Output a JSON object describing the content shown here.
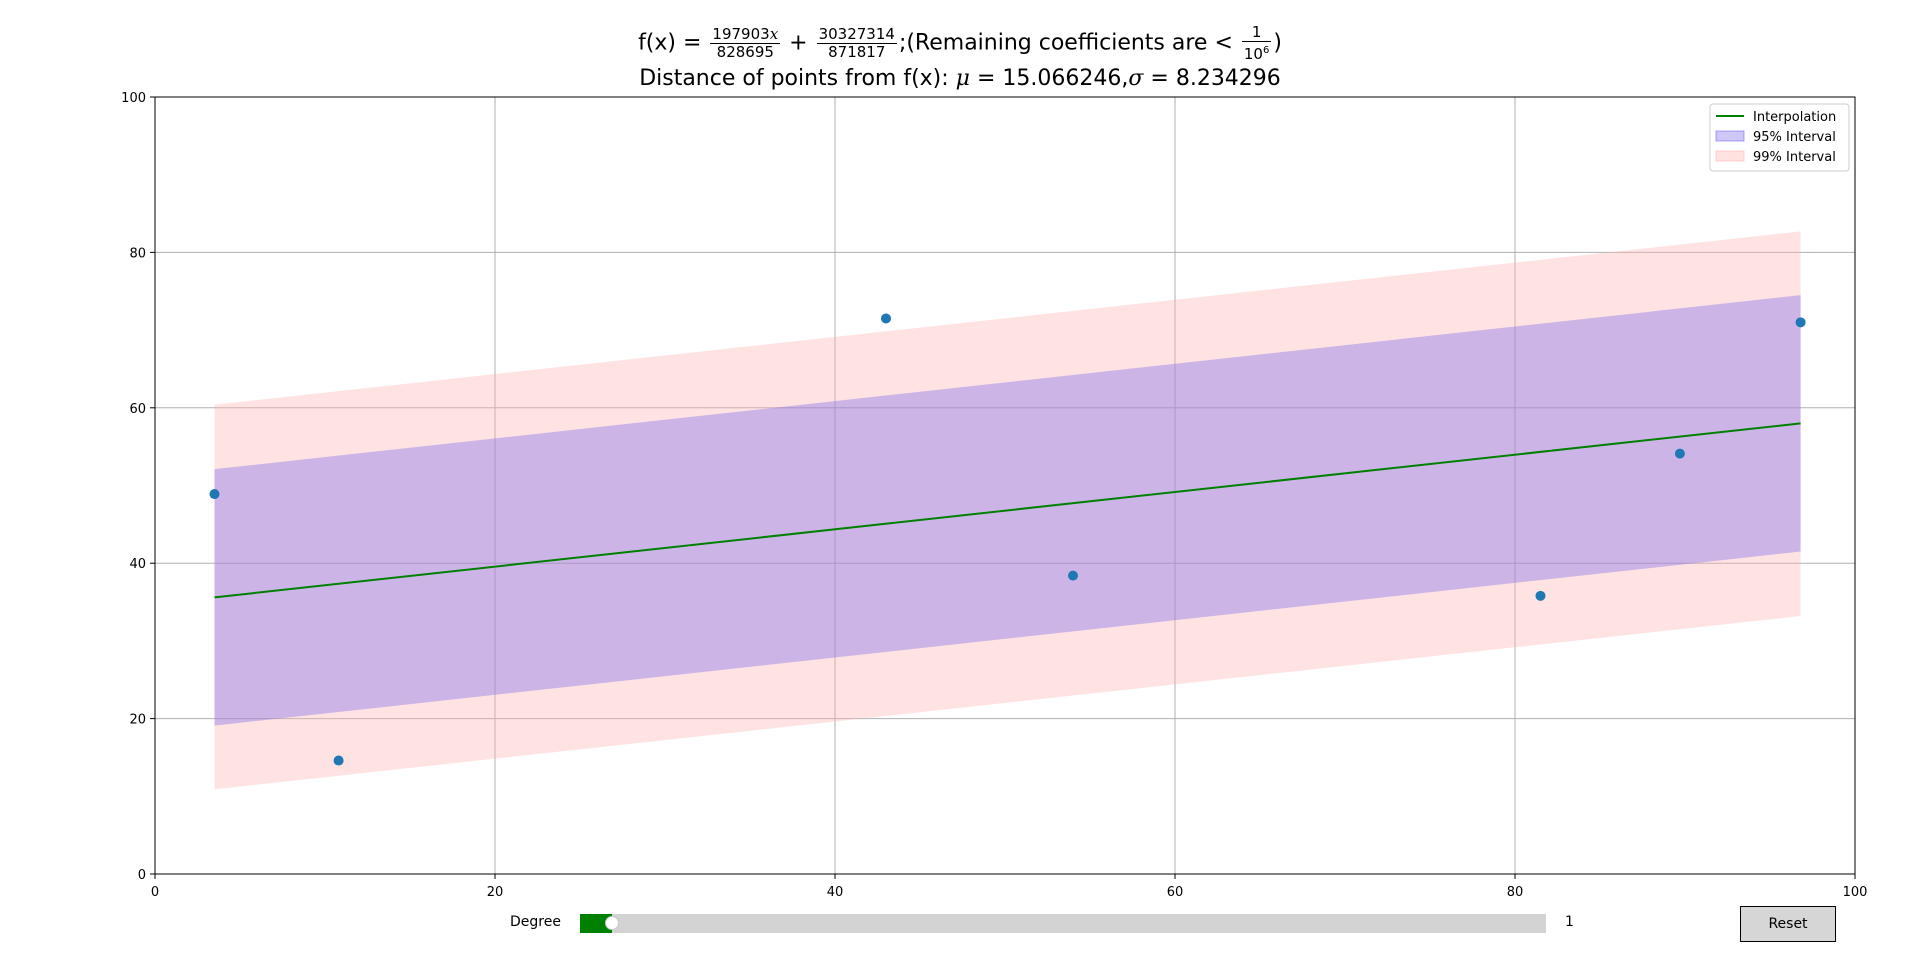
{
  "title": {
    "line1_prefix": "f(x) = ",
    "frac1_num": "197903",
    "frac1_var": "x",
    "frac1_den": "828695",
    "plus": " + ",
    "frac2_num": "30327314",
    "frac2_den": "871817",
    "remaining_text": ";(Remaining coefficients are < ",
    "frac3_num": "1",
    "frac3_den_base": "10",
    "frac3_den_exp": "6",
    "close_paren": ")",
    "line2_prefix": "Distance of points from f(x): ",
    "mu_symbol": "μ",
    "mu_text": " = 15.066246,",
    "sigma_symbol": "σ",
    "sigma_text": " = 8.234296"
  },
  "colors": {
    "interpolation": "#008000",
    "interval95_fill": "#7b68ee",
    "interval99_fill": "#ffb6b6",
    "points": "#1f77b4",
    "grid": "#b0b0b0"
  },
  "chart_data": {
    "type": "scatter",
    "xlim": [
      0,
      100
    ],
    "ylim": [
      0,
      100
    ],
    "xticks": [
      0,
      20,
      40,
      60,
      80,
      100
    ],
    "yticks": [
      0,
      20,
      40,
      60,
      80,
      100
    ],
    "grid": true,
    "legend_position": "top-right",
    "series": [
      {
        "name": "Interpolation",
        "kind": "line",
        "x": [
          3.5,
          96.8
        ],
        "y": [
          35.6,
          58.0
        ]
      },
      {
        "name": "95% Interval",
        "kind": "band",
        "x": [
          3.5,
          96.8
        ],
        "lower": [
          19.1,
          41.5
        ],
        "upper": [
          52.1,
          74.5
        ]
      },
      {
        "name": "99% Interval",
        "kind": "band",
        "x": [
          3.5,
          96.8
        ],
        "lower": [
          10.9,
          33.2
        ],
        "upper": [
          60.4,
          82.7
        ]
      }
    ],
    "points": {
      "x": [
        3.5,
        10.8,
        43.0,
        54.0,
        81.5,
        89.7,
        96.8
      ],
      "y": [
        48.9,
        14.6,
        71.5,
        38.4,
        35.8,
        54.1,
        71.0
      ]
    }
  },
  "slider": {
    "label": "Degree",
    "value": "1",
    "fraction": 0.033
  },
  "reset": {
    "label": "Reset"
  }
}
